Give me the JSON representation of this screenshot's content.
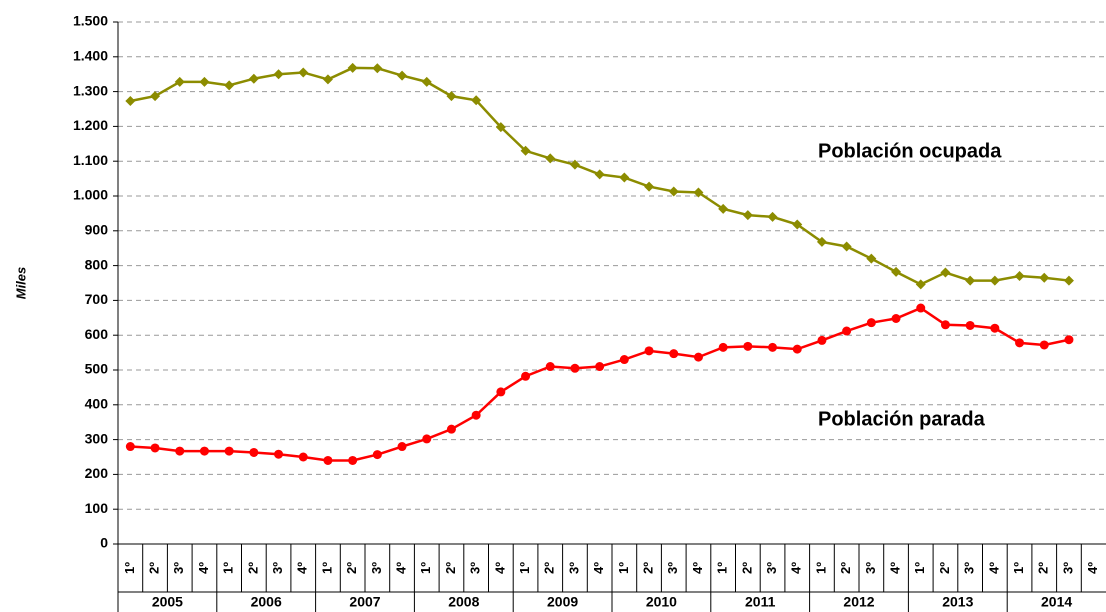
{
  "chart_data": {
    "type": "line",
    "y_label": "Miles",
    "categories": [
      "1º",
      "2º",
      "3º",
      "4º",
      "1º",
      "2º",
      "3º",
      "4º",
      "1º",
      "2º",
      "3º",
      "4º",
      "1º",
      "2º",
      "3º",
      "4º",
      "1º",
      "2º",
      "3º",
      "4º",
      "1º",
      "2º",
      "3º",
      "4º",
      "1º",
      "2º",
      "3º",
      "4º",
      "1º",
      "2º",
      "3º",
      "4º",
      "1º",
      "2º",
      "3º",
      "4º",
      "1º",
      "2º",
      "3º",
      "4º"
    ],
    "year_labels": [
      "2005",
      "2006",
      "2007",
      "2008",
      "2009",
      "2010",
      "2011",
      "2012",
      "2013",
      "2014"
    ],
    "series": [
      {
        "name": "Población ocupada",
        "color": "#8c8c00",
        "marker": "diamond",
        "values": [
          1273,
          1287,
          1328,
          1328,
          1318,
          1337,
          1350,
          1355,
          1335,
          1368,
          1367,
          1346,
          1328,
          1287,
          1275,
          1198,
          1130,
          1108,
          1090,
          1062,
          1053,
          1027,
          1013,
          1010,
          963,
          945,
          940,
          918,
          868,
          855,
          820,
          782,
          746,
          780,
          757,
          757,
          770,
          765,
          757,
          null
        ]
      },
      {
        "name": "Población parada",
        "color": "#ff0000",
        "marker": "circle",
        "values": [
          280,
          276,
          267,
          267,
          267,
          263,
          258,
          250,
          240,
          240,
          257,
          280,
          302,
          330,
          370,
          437,
          482,
          510,
          505,
          510,
          530,
          555,
          547,
          537,
          565,
          568,
          565,
          560,
          585,
          612,
          636,
          648,
          678,
          630,
          628,
          620,
          578,
          572,
          587,
          null
        ]
      }
    ],
    "ylim": [
      0,
      1500
    ],
    "yticks": [
      0,
      100,
      200,
      300,
      400,
      500,
      600,
      700,
      800,
      900,
      {
        "value": 1000,
        "label": "1.000"
      },
      {
        "value": 1100,
        "label": "1.100"
      },
      {
        "value": 1200,
        "label": "1.200"
      },
      {
        "value": 1300,
        "label": "1.300"
      },
      {
        "value": 1400,
        "label": "1.400"
      },
      {
        "value": 1500,
        "label": "1.500"
      }
    ],
    "grid": true
  }
}
